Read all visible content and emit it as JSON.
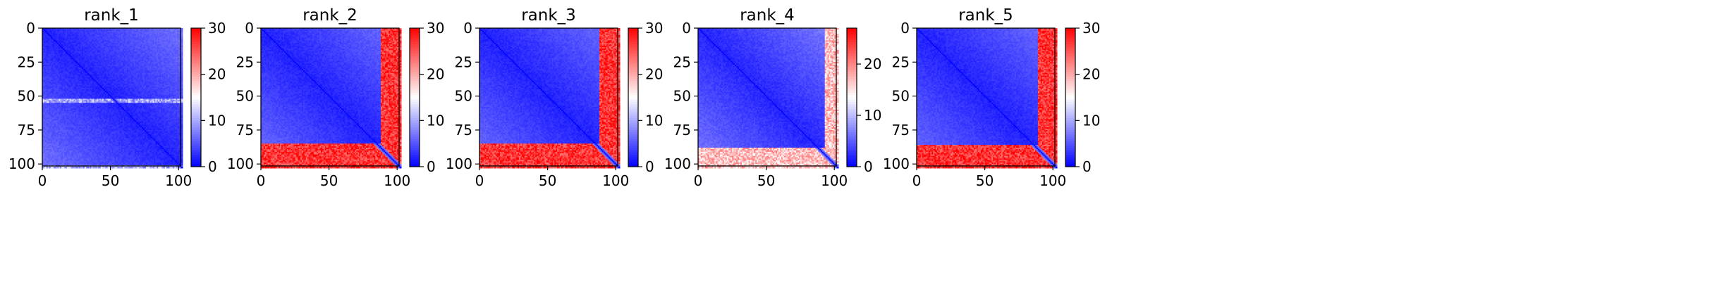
{
  "chart_data": [
    {
      "type": "heatmap",
      "title": "rank_1",
      "xlim": [
        0,
        103
      ],
      "ylim": [
        103,
        0
      ],
      "xticks": [
        0,
        50,
        100
      ],
      "yticks": [
        0,
        25,
        50,
        75,
        100
      ],
      "colorbar": {
        "min": 0,
        "max": 30,
        "ticks": [
          0,
          10,
          20,
          30
        ],
        "cmap": "bwr"
      },
      "matrix_size": 103,
      "disordered_rows": [
        [
          52,
          54
        ],
        [
          101,
          102
        ]
      ],
      "disordered_cols": [],
      "disordered_block_value": 10
    },
    {
      "type": "heatmap",
      "title": "rank_2",
      "xlim": [
        0,
        103
      ],
      "ylim": [
        103,
        0
      ],
      "xticks": [
        0,
        50,
        100
      ],
      "yticks": [
        0,
        25,
        50,
        75,
        100
      ],
      "colorbar": {
        "min": 0,
        "max": 30,
        "ticks": [
          0,
          10,
          20,
          30
        ],
        "cmap": "bwr"
      },
      "matrix_size": 103,
      "disordered_rows": [
        [
          85,
          103
        ]
      ],
      "disordered_cols": [
        [
          88,
          103
        ]
      ],
      "disordered_block_value": 27
    },
    {
      "type": "heatmap",
      "title": "rank_3",
      "xlim": [
        0,
        103
      ],
      "ylim": [
        103,
        0
      ],
      "xticks": [
        0,
        50,
        100
      ],
      "yticks": [
        0,
        25,
        50,
        75,
        100
      ],
      "colorbar": {
        "min": 0,
        "max": 30,
        "ticks": [
          0,
          10,
          20,
          30
        ],
        "cmap": "bwr"
      },
      "matrix_size": 103,
      "disordered_rows": [
        [
          85,
          103
        ]
      ],
      "disordered_cols": [
        [
          88,
          103
        ]
      ],
      "disordered_block_value": 27
    },
    {
      "type": "heatmap",
      "title": "rank_4",
      "xlim": [
        0,
        103
      ],
      "ylim": [
        103,
        0
      ],
      "xticks": [
        0,
        50,
        100
      ],
      "yticks": [
        0,
        25,
        50,
        75,
        100
      ],
      "colorbar": {
        "min": 0,
        "max": 27,
        "ticks": [
          0,
          10,
          20
        ],
        "cmap": "bwr"
      },
      "matrix_size": 103,
      "disordered_rows": [
        [
          88,
          103
        ]
      ],
      "disordered_cols": [
        [
          93,
          103
        ]
      ],
      "disordered_block_value": 17
    },
    {
      "type": "heatmap",
      "title": "rank_5",
      "xlim": [
        0,
        103
      ],
      "ylim": [
        103,
        0
      ],
      "xticks": [
        0,
        50,
        100
      ],
      "yticks": [
        0,
        25,
        50,
        75,
        100
      ],
      "colorbar": {
        "min": 0,
        "max": 30,
        "ticks": [
          0,
          10,
          20,
          30
        ],
        "cmap": "bwr"
      },
      "matrix_size": 103,
      "disordered_rows": [
        [
          86,
          103
        ]
      ],
      "disordered_cols": [
        [
          89,
          103
        ]
      ],
      "disordered_block_value": 27
    }
  ]
}
